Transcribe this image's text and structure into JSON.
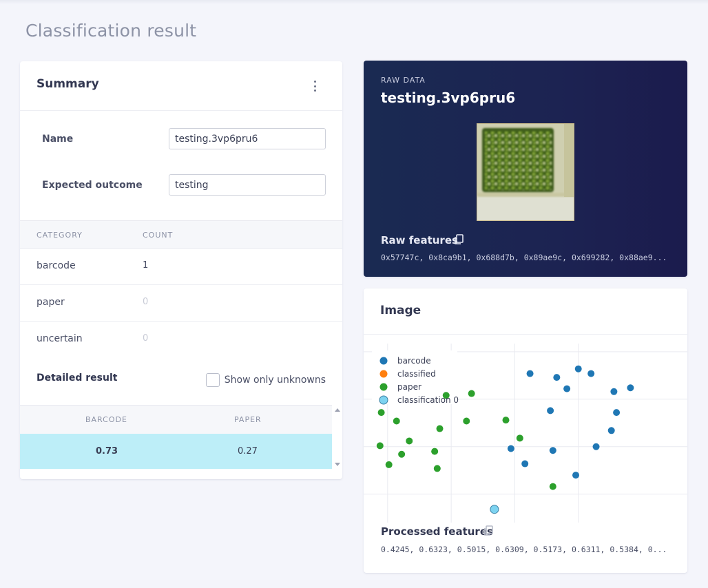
{
  "page": {
    "title": "Classification result"
  },
  "summary": {
    "title": "Summary",
    "menu_icon": "kebab-menu-icon",
    "fields": {
      "name_label": "Name",
      "name_value": "testing.3vp6pru6",
      "expected_label": "Expected outcome",
      "expected_value": "testing"
    },
    "category_table": {
      "headers": [
        "CATEGORY",
        "COUNT"
      ],
      "rows": [
        {
          "category": "barcode",
          "count": "1"
        },
        {
          "category": "paper",
          "count": "0"
        },
        {
          "category": "uncertain",
          "count": "0"
        }
      ]
    },
    "detailed": {
      "title": "Detailed result",
      "show_unknowns_label": "Show only unknowns",
      "show_unknowns_checked": false,
      "headers": [
        "BARCODE",
        "PAPER"
      ],
      "row": [
        "0.73",
        "0.27"
      ]
    }
  },
  "raw": {
    "kicker": "RAW DATA",
    "name": "testing.3vp6pru6",
    "features_label": "Raw features",
    "features_value": "0x57747c, 0x8ca9b1, 0x688d7b, 0x89ae9c, 0x699282, 0x88ae9..."
  },
  "image_card": {
    "title": "Image",
    "processed_label": "Processed features",
    "processed_value": "0.4245, 0.6323, 0.5015, 0.6309, 0.5173, 0.6311, 0.5384, 0..."
  },
  "colors": {
    "barcode": "#1f77b4",
    "classified": "#ff7f0e",
    "paper": "#2ca02c",
    "classification": "#7dd3f0",
    "highlight_row": "#bdeef8",
    "raw_card_bg": "#1c2352"
  },
  "chart_data": {
    "type": "scatter",
    "xlim": [
      -9.4,
      14.6
    ],
    "ylim": [
      -10.6,
      7.9
    ],
    "grid": true,
    "legend_position": "top-left",
    "series": [
      {
        "name": "barcode",
        "points": [
          [
            3.2,
            5.1
          ],
          [
            5.3,
            4.7
          ],
          [
            7.0,
            5.6
          ],
          [
            8.0,
            5.1
          ],
          [
            6.1,
            3.5
          ],
          [
            9.8,
            3.2
          ],
          [
            11.1,
            3.6
          ],
          [
            10.0,
            1.0
          ],
          [
            4.8,
            1.2
          ],
          [
            9.6,
            -0.9
          ],
          [
            8.4,
            -2.6
          ],
          [
            1.7,
            -2.8
          ],
          [
            5.0,
            -3.0
          ],
          [
            2.8,
            -4.4
          ],
          [
            6.8,
            -5.6
          ]
        ]
      },
      {
        "name": "classified",
        "points": []
      },
      {
        "name": "paper",
        "points": [
          [
            -3.4,
            2.8
          ],
          [
            -1.4,
            3.0
          ],
          [
            -8.5,
            1.0
          ],
          [
            -7.3,
            0.1
          ],
          [
            -1.8,
            0.1
          ],
          [
            1.3,
            0.2
          ],
          [
            -3.9,
            -0.7
          ],
          [
            2.4,
            -1.7
          ],
          [
            -6.3,
            -2.0
          ],
          [
            -8.6,
            -2.5
          ],
          [
            -4.3,
            -3.1
          ],
          [
            -6.9,
            -3.4
          ],
          [
            -7.9,
            -4.5
          ],
          [
            -4.1,
            -4.9
          ],
          [
            5.0,
            -6.8
          ]
        ]
      },
      {
        "name": "classification 0",
        "points": [
          [
            0.4,
            -9.2
          ]
        ]
      }
    ]
  }
}
